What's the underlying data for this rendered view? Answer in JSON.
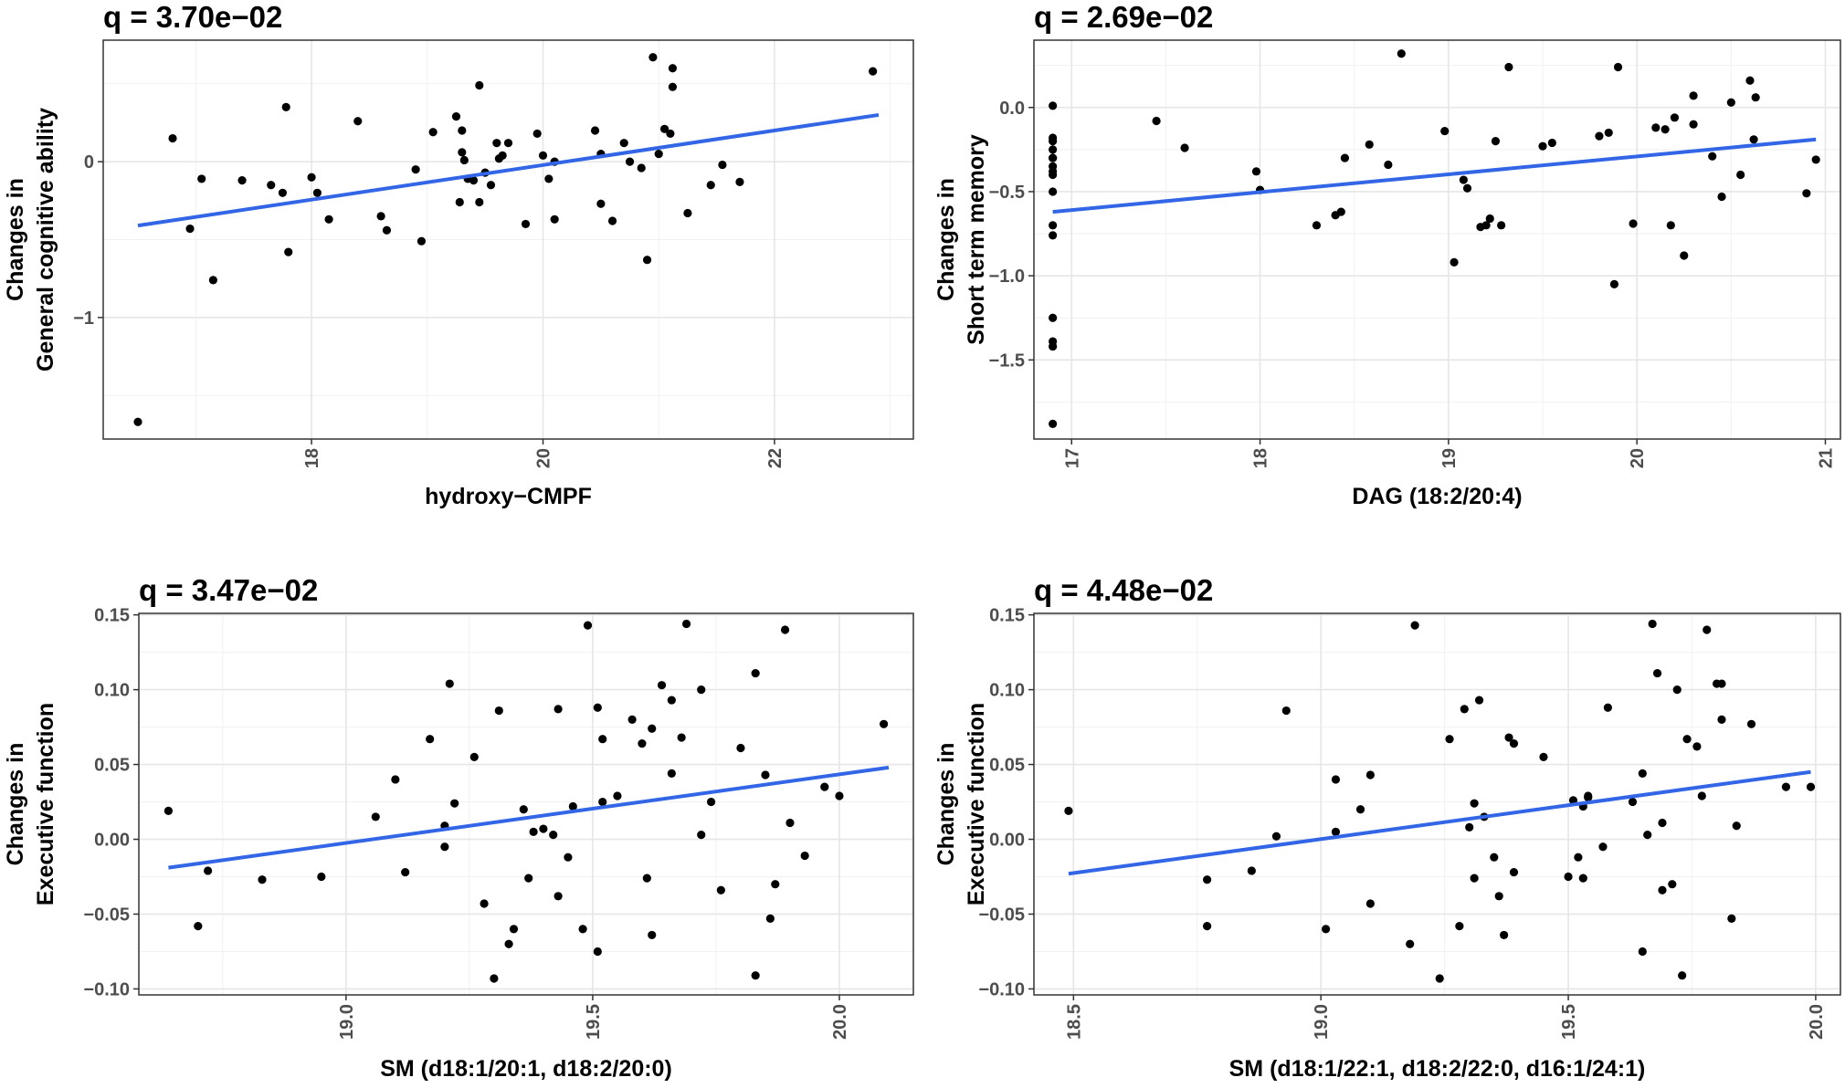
{
  "chart_data": [
    {
      "type": "scatter",
      "title": "q = 3.70e−02",
      "xlabel": "hydroxy−CMPF",
      "ylabel_line1": "Changes in",
      "ylabel_line2": "General cognitive ability",
      "xlim": [
        16.2,
        23.2
      ],
      "ylim": [
        -1.78,
        0.78
      ],
      "x_ticks": [
        18,
        20,
        22
      ],
      "x_tick_labels": [
        "18",
        "20",
        "22"
      ],
      "x_tick_rotated": true,
      "y_ticks": [
        -1,
        0
      ],
      "y_tick_labels": [
        "−1",
        "0"
      ],
      "fit": {
        "x": [
          16.5,
          22.9
        ],
        "y": [
          -0.41,
          0.3
        ]
      },
      "points": {
        "x": [
          16.5,
          16.8,
          16.95,
          17.05,
          17.15,
          17.4,
          17.65,
          17.75,
          17.78,
          17.8,
          18.0,
          18.05,
          18.15,
          18.4,
          18.6,
          18.65,
          18.9,
          18.95,
          19.05,
          19.25,
          19.28,
          19.3,
          19.3,
          19.32,
          19.35,
          19.4,
          19.45,
          19.45,
          19.5,
          19.55,
          19.6,
          19.62,
          19.65,
          19.7,
          19.85,
          19.95,
          20.0,
          20.05,
          20.1,
          20.1,
          20.45,
          20.5,
          20.5,
          20.6,
          20.7,
          20.75,
          20.85,
          20.9,
          20.95,
          21.0,
          21.05,
          21.1,
          21.12,
          21.12,
          21.25,
          21.45,
          21.55,
          21.7,
          22.85
        ],
        "y": [
          -1.67,
          0.15,
          -0.43,
          -0.11,
          -0.76,
          -0.12,
          -0.15,
          -0.2,
          0.35,
          -0.58,
          -0.1,
          -0.2,
          -0.37,
          0.26,
          -0.35,
          -0.44,
          -0.05,
          -0.51,
          0.19,
          0.29,
          -0.26,
          0.2,
          0.06,
          0.01,
          -0.11,
          -0.12,
          -0.26,
          0.49,
          -0.07,
          -0.15,
          0.12,
          0.02,
          0.04,
          0.12,
          -0.4,
          0.18,
          0.04,
          -0.11,
          0.0,
          -0.37,
          0.2,
          0.05,
          -0.27,
          -0.38,
          0.12,
          0.0,
          -0.04,
          -0.63,
          0.67,
          0.05,
          0.21,
          0.18,
          0.6,
          0.48,
          -0.33,
          -0.15,
          -0.02,
          -0.13,
          0.58
        ]
      }
    },
    {
      "type": "scatter",
      "title": "q = 2.69e−02",
      "xlabel": "DAG (18:2/20:4)",
      "ylabel_line1": "Changes in",
      "ylabel_line2": "Short term memory",
      "xlim": [
        16.8,
        21.08
      ],
      "ylim": [
        -1.97,
        0.4
      ],
      "x_ticks": [
        17,
        18,
        19,
        20,
        21
      ],
      "x_tick_labels": [
        "17",
        "18",
        "19",
        "20",
        "21"
      ],
      "x_tick_rotated": true,
      "y_ticks": [
        -1.5,
        -1.0,
        -0.5,
        0.0
      ],
      "y_tick_labels": [
        "−1.5",
        "−1.0",
        "−0.5",
        "0.0"
      ],
      "fit": {
        "x": [
          16.9,
          20.95
        ],
        "y": [
          -0.62,
          -0.19
        ]
      },
      "points": {
        "x": [
          16.9,
          16.9,
          16.9,
          16.9,
          16.9,
          16.9,
          16.9,
          16.9,
          16.9,
          16.9,
          16.9,
          16.9,
          16.9,
          16.9,
          16.9,
          16.9,
          17.45,
          17.6,
          17.98,
          18.0,
          18.3,
          18.4,
          18.43,
          18.45,
          18.58,
          18.68,
          18.75,
          18.98,
          19.03,
          19.08,
          19.1,
          19.17,
          19.2,
          19.22,
          19.25,
          19.28,
          19.32,
          19.5,
          19.55,
          19.8,
          19.85,
          19.88,
          19.9,
          19.98,
          20.1,
          20.15,
          20.18,
          20.2,
          20.25,
          20.3,
          20.3,
          20.4,
          20.45,
          20.5,
          20.55,
          20.6,
          20.62,
          20.63,
          20.9,
          20.95
        ],
        "y": [
          0.01,
          -0.18,
          -0.2,
          -0.25,
          -0.3,
          -0.35,
          -0.38,
          -0.4,
          -0.5,
          -0.7,
          -0.76,
          -1.25,
          -1.39,
          -1.42,
          -1.88,
          -0.3,
          -0.08,
          -0.24,
          -0.38,
          -0.49,
          -0.7,
          -0.64,
          -0.62,
          -0.3,
          -0.22,
          -0.34,
          0.32,
          -0.14,
          -0.92,
          -0.43,
          -0.48,
          -0.71,
          -0.7,
          -0.66,
          -0.2,
          -0.7,
          0.24,
          -0.23,
          -0.21,
          -0.17,
          -0.15,
          -1.05,
          0.24,
          -0.69,
          -0.12,
          -0.13,
          -0.7,
          -0.06,
          -0.88,
          -0.1,
          0.07,
          -0.29,
          -0.53,
          0.03,
          -0.4,
          0.16,
          -0.19,
          0.06,
          -0.51,
          -0.31
        ]
      }
    },
    {
      "type": "scatter",
      "title": "q = 3.47e−02",
      "xlabel": "SM (d18:1/20:1, d18:2/20:0)",
      "ylabel_line1": "Changes in",
      "ylabel_line2": "Executive function",
      "xlim": [
        18.58,
        20.15
      ],
      "ylim": [
        -0.104,
        0.151
      ],
      "x_ticks": [
        19.0,
        19.5,
        20.0
      ],
      "x_tick_labels": [
        "19.0",
        "19.5",
        "20.0"
      ],
      "x_tick_rotated": true,
      "y_ticks": [
        -0.1,
        -0.05,
        0.0,
        0.05,
        0.1,
        0.15
      ],
      "y_tick_labels": [
        "−0.10",
        "−0.05",
        "0.00",
        "0.05",
        "0.10",
        "0.15"
      ],
      "fit": {
        "x": [
          18.64,
          20.1
        ],
        "y": [
          -0.019,
          0.048
        ]
      },
      "points": {
        "x": [
          18.64,
          18.7,
          18.72,
          18.83,
          18.95,
          19.06,
          19.1,
          19.12,
          19.17,
          19.2,
          19.2,
          19.21,
          19.22,
          19.26,
          19.28,
          19.3,
          19.31,
          19.33,
          19.34,
          19.36,
          19.37,
          19.38,
          19.4,
          19.42,
          19.43,
          19.43,
          19.45,
          19.46,
          19.48,
          19.49,
          19.51,
          19.51,
          19.52,
          19.52,
          19.55,
          19.58,
          19.6,
          19.61,
          19.62,
          19.62,
          19.64,
          19.66,
          19.66,
          19.68,
          19.69,
          19.72,
          19.72,
          19.74,
          19.76,
          19.8,
          19.83,
          19.83,
          19.85,
          19.86,
          19.87,
          19.89,
          19.9,
          19.93,
          19.97,
          20.0,
          20.09
        ],
        "y": [
          0.019,
          -0.058,
          -0.021,
          -0.027,
          -0.025,
          0.015,
          0.04,
          -0.022,
          0.067,
          0.009,
          -0.005,
          0.104,
          0.024,
          0.055,
          -0.043,
          -0.093,
          0.086,
          -0.07,
          -0.06,
          0.02,
          -0.026,
          0.005,
          0.007,
          0.003,
          0.087,
          -0.038,
          -0.012,
          0.022,
          -0.06,
          0.143,
          0.088,
          -0.075,
          0.067,
          0.025,
          0.029,
          0.08,
          0.064,
          -0.026,
          -0.064,
          0.074,
          0.103,
          0.093,
          0.044,
          0.068,
          0.144,
          0.003,
          0.1,
          0.025,
          -0.034,
          0.061,
          0.111,
          -0.091,
          0.043,
          -0.053,
          -0.03,
          0.14,
          0.011,
          -0.011,
          0.035,
          0.029,
          0.077
        ]
      }
    },
    {
      "type": "scatter",
      "title": "q = 4.48e−02",
      "xlabel": "SM (d18:1/22:1, d18:2/22:0, d16:1/24:1)",
      "ylabel_line1": "Changes in",
      "ylabel_line2": "Executive function",
      "xlim": [
        18.42,
        20.05
      ],
      "ylim": [
        -0.104,
        0.151
      ],
      "x_ticks": [
        18.5,
        19.0,
        19.5,
        20.0
      ],
      "x_tick_labels": [
        "18.5",
        "19.0",
        "19.5",
        "20.0"
      ],
      "x_tick_rotated": true,
      "y_ticks": [
        -0.1,
        -0.05,
        0.0,
        0.05,
        0.1,
        0.15
      ],
      "y_tick_labels": [
        "−0.10",
        "−0.05",
        "0.00",
        "0.05",
        "0.10",
        "0.15"
      ],
      "fit": {
        "x": [
          18.49,
          19.99
        ],
        "y": [
          -0.023,
          0.045
        ]
      },
      "points": {
        "x": [
          18.49,
          18.77,
          18.77,
          18.86,
          18.91,
          18.93,
          19.01,
          19.03,
          19.03,
          19.08,
          19.1,
          19.1,
          19.18,
          19.19,
          19.24,
          19.26,
          19.28,
          19.29,
          19.3,
          19.31,
          19.31,
          19.32,
          19.33,
          19.35,
          19.36,
          19.37,
          19.38,
          19.39,
          19.39,
          19.45,
          19.5,
          19.51,
          19.52,
          19.53,
          19.53,
          19.54,
          19.54,
          19.57,
          19.58,
          19.63,
          19.65,
          19.65,
          19.66,
          19.67,
          19.68,
          19.69,
          19.69,
          19.71,
          19.72,
          19.73,
          19.74,
          19.76,
          19.77,
          19.78,
          19.8,
          19.81,
          19.81,
          19.83,
          19.84,
          19.87,
          19.94,
          19.99
        ],
        "y": [
          0.019,
          -0.027,
          -0.058,
          -0.021,
          0.002,
          0.086,
          -0.06,
          0.04,
          0.005,
          0.02,
          -0.043,
          0.043,
          -0.07,
          0.143,
          -0.093,
          0.067,
          -0.058,
          0.087,
          0.008,
          0.024,
          -0.026,
          0.093,
          0.015,
          -0.012,
          -0.038,
          -0.064,
          0.068,
          0.064,
          -0.022,
          0.055,
          -0.025,
          0.026,
          -0.012,
          -0.026,
          0.022,
          0.028,
          0.029,
          -0.005,
          0.088,
          0.025,
          -0.075,
          0.044,
          0.003,
          0.144,
          0.111,
          -0.034,
          0.011,
          -0.03,
          0.1,
          -0.091,
          0.067,
          0.062,
          0.029,
          0.14,
          0.104,
          0.08,
          0.104,
          -0.053,
          0.009,
          0.077,
          0.035,
          0.035
        ]
      }
    }
  ]
}
